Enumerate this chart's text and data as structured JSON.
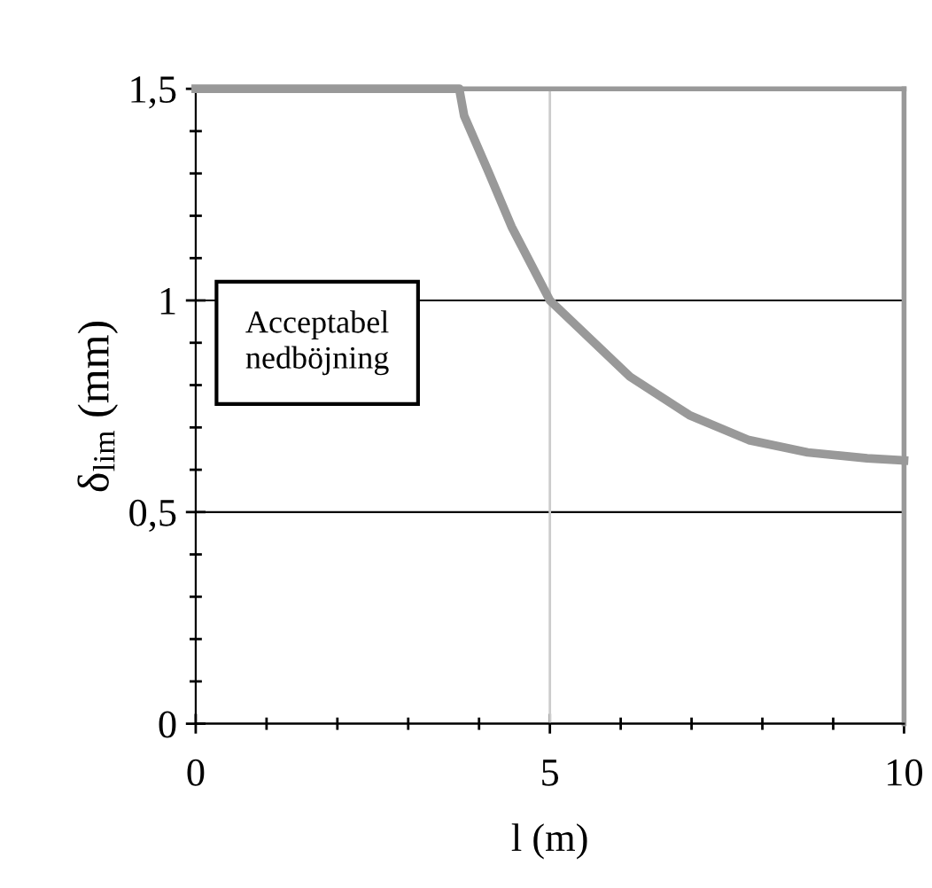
{
  "chart_data": {
    "type": "line",
    "xlabel": "l (m)",
    "ylabel": "δ$_{lim}$ (mm)",
    "x": [
      0,
      1,
      2,
      3,
      3.72,
      3.79,
      4.13,
      4.46,
      5,
      6.13,
      6.97,
      7.81,
      8.64,
      9.48,
      10
    ],
    "series": [
      {
        "color": "#999999",
        "values": [
          1.5,
          1.5,
          1.5,
          1.5,
          1.5,
          1.436,
          1.305,
          1.174,
          1.0,
          0.82,
          0.729,
          0.67,
          0.641,
          0.627,
          0.622
        ]
      }
    ],
    "xlim": [
      0,
      10
    ],
    "ylim": [
      0,
      1.5
    ],
    "xticks": [
      0,
      5,
      10
    ],
    "yticks": [
      0,
      {
        "value": 0.5,
        "label": "0,5"
      },
      1,
      {
        "value": 1.5,
        "label": "1,5"
      }
    ],
    "grid": "y",
    "ref_lines": [
      {
        "axis": "x",
        "value": 5,
        "color": "#cccccc"
      }
    ],
    "marker": "none",
    "line_style": "solid",
    "annotations": [
      "Acceptabel\nnedböjning"
    ]
  }
}
